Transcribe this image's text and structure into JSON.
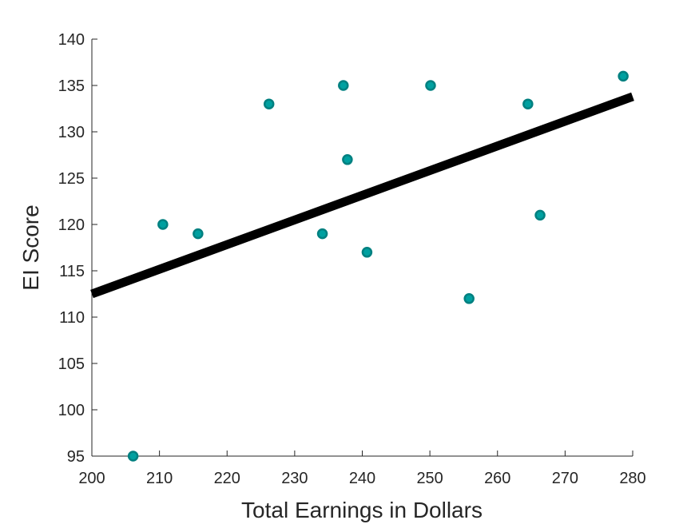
{
  "chart_data": {
    "type": "scatter",
    "title": "",
    "xlabel": "Total Earnings in Dollars",
    "ylabel": "EI Score",
    "xlim": [
      200,
      280
    ],
    "ylim": [
      95,
      140
    ],
    "xticks": [
      200,
      210,
      220,
      230,
      240,
      250,
      260,
      270,
      280
    ],
    "yticks": [
      95,
      100,
      105,
      110,
      115,
      120,
      125,
      130,
      135,
      140
    ],
    "grid": false,
    "legend": "none",
    "series": [
      {
        "points": [
          {
            "x": 206.1,
            "y": 95
          },
          {
            "x": 210.5,
            "y": 120
          },
          {
            "x": 215.7,
            "y": 119
          },
          {
            "x": 226.2,
            "y": 133
          },
          {
            "x": 234.1,
            "y": 119
          },
          {
            "x": 237.2,
            "y": 135
          },
          {
            "x": 237.8,
            "y": 127
          },
          {
            "x": 240.7,
            "y": 117
          },
          {
            "x": 250.1,
            "y": 135
          },
          {
            "x": 255.8,
            "y": 112
          },
          {
            "x": 264.5,
            "y": 133
          },
          {
            "x": 266.3,
            "y": 121
          },
          {
            "x": 278.6,
            "y": 136
          }
        ],
        "marker_fill": "#00a0a0",
        "marker_edge": "#008080"
      }
    ],
    "trendline": {
      "x": [
        200,
        280
      ],
      "y": [
        112.5,
        133.8
      ],
      "color": "#000000"
    },
    "axis_color": "#262626"
  }
}
